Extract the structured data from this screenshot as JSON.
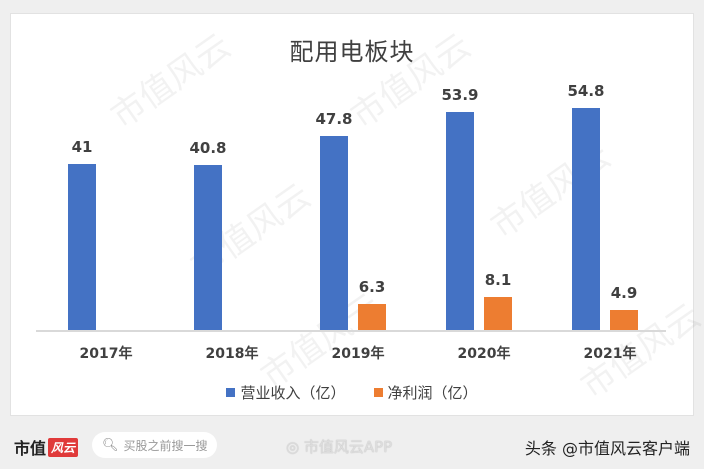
{
  "chart_data": {
    "type": "bar",
    "title": "配用电板块",
    "categories": [
      "2017年",
      "2018年",
      "2019年",
      "2020年",
      "2021年"
    ],
    "series": [
      {
        "name": "营业收入（亿）",
        "color": "#4472c4",
        "values": [
          41,
          40.8,
          47.8,
          53.9,
          54.8
        ]
      },
      {
        "name": "净利润（亿）",
        "color": "#ed7d31",
        "values": [
          null,
          null,
          6.3,
          8.1,
          4.9
        ]
      }
    ],
    "data_labels": {
      "revenue": [
        "41",
        "40.8",
        "47.8",
        "53.9",
        "54.8"
      ],
      "profit": [
        "",
        "",
        "6.3",
        "8.1",
        "4.9"
      ]
    },
    "xlabel": "",
    "ylabel": "",
    "ylim": [
      0,
      58
    ],
    "grid": false,
    "legend_position": "bottom"
  },
  "legend": {
    "revenue": "营业收入（亿）",
    "profit": "净利润（亿）"
  },
  "watermark": "市值风云",
  "footer": {
    "logo_text": "市值",
    "logo_badge": "风云",
    "search_placeholder": "买股之前搜一搜",
    "weibo_text": "市值风云APP",
    "toutiao_text": "头条 @市值风云客户端"
  }
}
